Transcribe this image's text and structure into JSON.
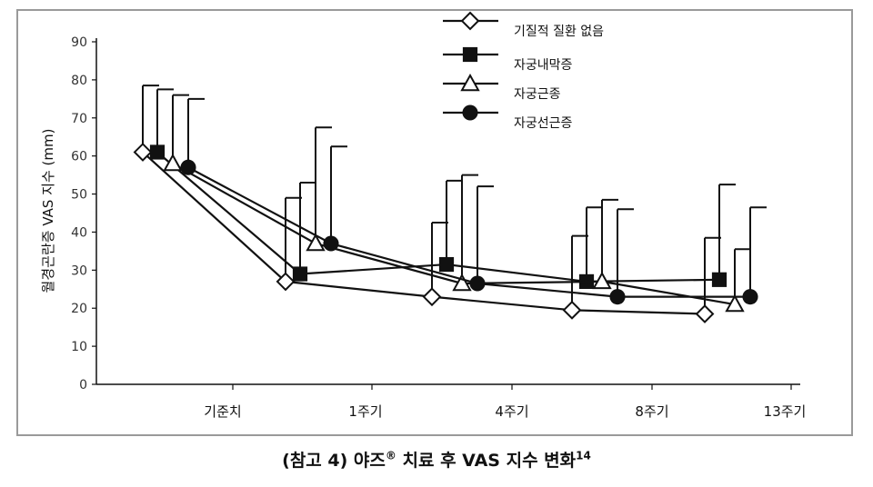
{
  "chart_data": {
    "type": "line",
    "ylabel": "월경곤란증 VAS 지수 (mm)",
    "xlabel": "",
    "ylim": [
      0,
      90
    ],
    "yticks": [
      0,
      10,
      20,
      30,
      40,
      50,
      60,
      70,
      80,
      90
    ],
    "categories": [
      "기준치",
      "1주기",
      "4주기",
      "8주기",
      "13주기"
    ],
    "legend_position": "top-right",
    "grid": false,
    "error_bars": "upper standard deviation",
    "series": [
      {
        "name": "기질적 질환 없음",
        "marker": "diamond-open",
        "values": [
          61,
          27,
          23,
          19.5,
          18.5
        ],
        "upper": [
          78.5,
          49,
          42.5,
          39,
          38.5
        ]
      },
      {
        "name": "자궁내막증",
        "marker": "square-filled",
        "values": [
          61,
          29,
          31.5,
          27,
          27.5
        ],
        "upper": [
          77.5,
          53,
          53.5,
          46.5,
          52.5
        ]
      },
      {
        "name": "자궁근종",
        "marker": "triangle-open",
        "values": [
          58,
          37,
          26.5,
          27,
          21
        ],
        "upper": [
          76,
          67.5,
          55,
          48.5,
          35.5
        ]
      },
      {
        "name": "자궁선근증",
        "marker": "circle-filled",
        "values": [
          57,
          37,
          26.5,
          23,
          23
        ],
        "upper": [
          75,
          62.5,
          52,
          46,
          46.5
        ]
      }
    ]
  },
  "caption": {
    "text": "(참고 4) 야즈",
    "registered": "®",
    "text2": " 치료 후 VAS 지수 변화",
    "superscript": "14"
  },
  "colors": {
    "ink": "#111111",
    "frame": "#9a9a9a"
  }
}
